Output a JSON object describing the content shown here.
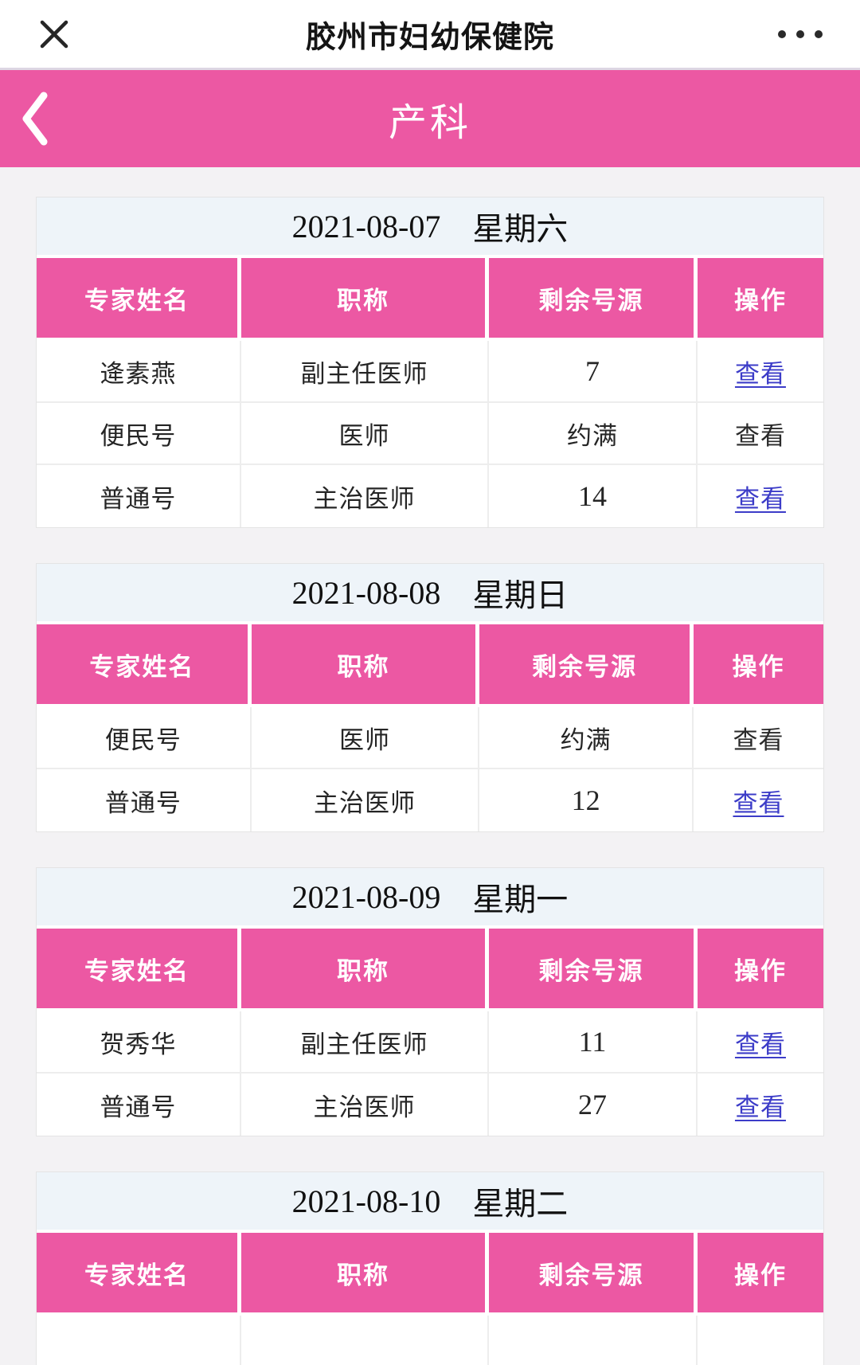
{
  "topbar": {
    "title": "胶州市妇幼保健院",
    "close_icon": "✕",
    "more_icon": "•••"
  },
  "navbar": {
    "back_icon": "‹",
    "title": "产科"
  },
  "colors": {
    "pink": "#ec58a3",
    "link_blue": "#3c3cc8",
    "date_band_bg": "#eef4f9"
  },
  "tables": [
    {
      "date": "2021-08-07",
      "weekday": "星期六",
      "columns": [
        "专家姓名",
        "职称",
        "剩余号源",
        "操作"
      ],
      "col_widths": [
        "26%",
        "31.5%",
        "26.5%",
        "16%"
      ],
      "rows": [
        {
          "name": "逄素燕",
          "title": "副主任医师",
          "remaining": "7",
          "action": "查看",
          "action_link": true
        },
        {
          "name": "便民号",
          "title": "医师",
          "remaining": "约满",
          "action": "查看",
          "action_link": false
        },
        {
          "name": "普通号",
          "title": "主治医师",
          "remaining": "14",
          "action": "查看",
          "action_link": true
        }
      ]
    },
    {
      "date": "2021-08-08",
      "weekday": "星期日",
      "columns": [
        "专家姓名",
        "职称",
        "剩余号源",
        "操作"
      ],
      "col_widths": [
        "27.3%",
        "29%",
        "27.2%",
        "16.5%"
      ],
      "rows": [
        {
          "name": "便民号",
          "title": "医师",
          "remaining": "约满",
          "action": "查看",
          "action_link": false
        },
        {
          "name": "普通号",
          "title": "主治医师",
          "remaining": "12",
          "action": "查看",
          "action_link": true
        }
      ]
    },
    {
      "date": "2021-08-09",
      "weekday": "星期一",
      "columns": [
        "专家姓名",
        "职称",
        "剩余号源",
        "操作"
      ],
      "col_widths": [
        "26%",
        "31.5%",
        "26.5%",
        "16%"
      ],
      "rows": [
        {
          "name": "贺秀华",
          "title": "副主任医师",
          "remaining": "11",
          "action": "查看",
          "action_link": true
        },
        {
          "name": "普通号",
          "title": "主治医师",
          "remaining": "27",
          "action": "查看",
          "action_link": true
        }
      ]
    },
    {
      "date": "2021-08-10",
      "weekday": "星期二",
      "columns": [
        "专家姓名",
        "职称",
        "剩余号源",
        "操作"
      ],
      "col_widths": [
        "26%",
        "31.5%",
        "26.5%",
        "16%"
      ],
      "rows": [],
      "has_partial_row": true
    }
  ]
}
